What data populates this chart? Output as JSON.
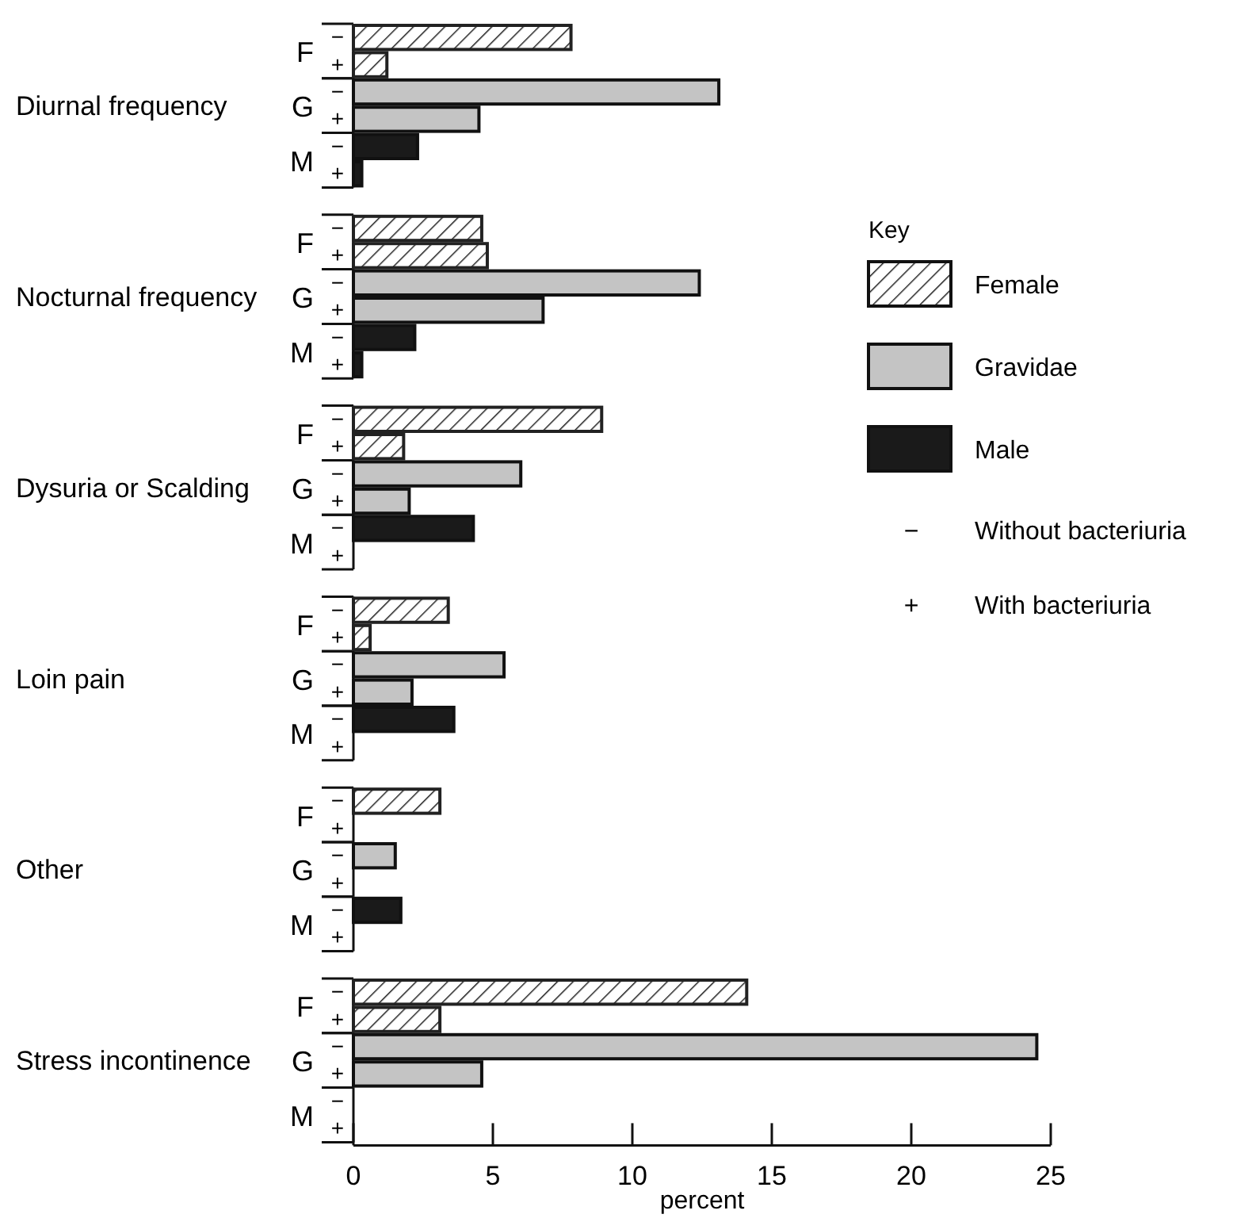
{
  "chart_data": {
    "type": "bar",
    "orientation": "horizontal",
    "xlabel": "percent",
    "legend_title": "Key",
    "legend": "right",
    "xlim": [
      0,
      25
    ],
    "xticks": [
      0,
      5,
      10,
      15,
      20,
      25
    ],
    "grid": false,
    "categories": [
      "−",
      "+",
      "−",
      "+",
      "−",
      "+",
      null,
      "−",
      "+",
      "−",
      "+",
      "−",
      "+",
      null,
      "−",
      "+",
      "−",
      "+",
      "−",
      "+",
      null,
      "−",
      "+",
      "−",
      "+",
      "−",
      "+",
      null,
      "−",
      "+",
      "−",
      "+",
      "−",
      "+",
      null,
      "−",
      "+",
      "−",
      "+",
      "−",
      "+"
    ],
    "series": [
      {
        "name": "Female",
        "color": "#222222",
        "values": [
          7.8,
          1.2,
          null,
          null,
          null,
          null,
          null,
          4.6,
          4.8,
          null,
          null,
          null,
          null,
          null,
          8.9,
          1.8,
          null,
          null,
          null,
          null,
          null,
          3.4,
          0.6,
          null,
          null,
          null,
          null,
          null,
          3.1,
          0,
          null,
          null,
          null,
          null,
          null,
          14.1,
          3.1,
          null,
          null,
          null,
          null
        ]
      },
      {
        "name": "Gravidae",
        "color": "#c4c4c4",
        "values": [
          null,
          null,
          13.1,
          4.5,
          null,
          null,
          null,
          null,
          null,
          12.4,
          6.8,
          null,
          null,
          null,
          null,
          null,
          6.0,
          2.0,
          null,
          null,
          null,
          null,
          null,
          5.4,
          2.1,
          null,
          null,
          null,
          null,
          null,
          1.5,
          0,
          null,
          null,
          null,
          null,
          null,
          24.5,
          4.6,
          null,
          null
        ]
      },
      {
        "name": "Male",
        "color": "#1a1a1a",
        "values": [
          null,
          null,
          null,
          null,
          2.3,
          0.3,
          null,
          null,
          null,
          null,
          null,
          2.2,
          0.3,
          null,
          null,
          null,
          null,
          null,
          4.3,
          0,
          null,
          null,
          null,
          null,
          null,
          3.6,
          0,
          null,
          null,
          null,
          null,
          null,
          1.7,
          0,
          null,
          null,
          null,
          null,
          null,
          0,
          0
        ]
      }
    ],
    "annotations": [
      "Diurnal frequency",
      "Nocturnal frequency",
      "Dysuria or Scalding",
      "Loin pain",
      "Other",
      "Stress incontinence",
      "F",
      "G",
      "M",
      "F",
      "G",
      "M",
      "F",
      "G",
      "M",
      "F",
      "G",
      "M",
      "F",
      "G",
      "M",
      "F",
      "G",
      "M",
      "− Without bacteriuria",
      "+ With bacteriuria"
    ]
  }
}
